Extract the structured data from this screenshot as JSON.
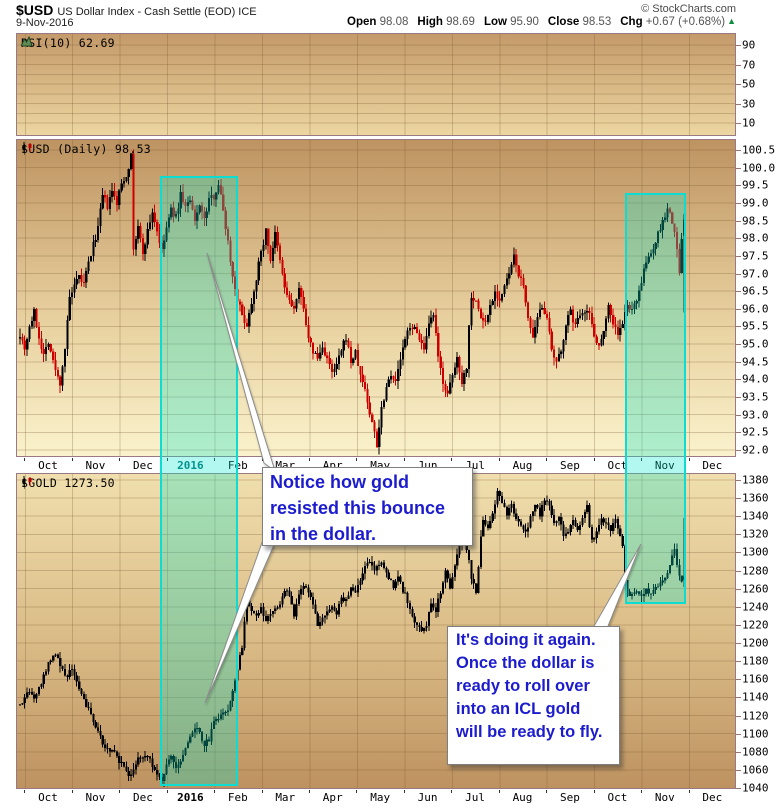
{
  "header": {
    "symbol": "$USD",
    "title": "US Dollar Index - Cash Settle (EOD) ICE",
    "copyright": "© StockCharts.com",
    "date": "9-Nov-2016",
    "ohlc": [
      {
        "label": "Open",
        "value": "98.08"
      },
      {
        "label": "High",
        "value": "98.69"
      },
      {
        "label": "Low",
        "value": "95.90"
      },
      {
        "label": "Close",
        "value": "98.53"
      },
      {
        "label": "Chg",
        "value": "+0.67 (+0.68%)"
      }
    ],
    "chg_direction": "up"
  },
  "panels": {
    "rsi": {
      "label": "RSI(10) 62.69",
      "icon": "area-chart-icon",
      "ticks": [
        90,
        70,
        50,
        30,
        10
      ]
    },
    "usd": {
      "label": "$USD (Daily) 98.53",
      "icon": "candlestick-icon",
      "ticks": [
        100.5,
        100.0,
        99.5,
        99.0,
        98.5,
        98.0,
        97.5,
        97.0,
        96.5,
        96.0,
        95.5,
        95.0,
        94.5,
        94.0,
        93.5,
        93.0,
        92.5,
        92.0
      ]
    },
    "gold": {
      "label": "$GOLD 1273.50",
      "icon": "candlestick-icon",
      "ticks": [
        1380,
        1360,
        1340,
        1320,
        1300,
        1280,
        1260,
        1240,
        1220,
        1200,
        1180,
        1160,
        1140,
        1120,
        1100,
        1080,
        1060,
        1040
      ]
    }
  },
  "month_axis_labels": [
    "Oct",
    "Nov",
    "Dec",
    "2016",
    "Feb",
    "Mar",
    "Apr",
    "May",
    "Jun",
    "Jul",
    "Aug",
    "Sep",
    "Oct",
    "Nov",
    "Dec"
  ],
  "annotations": {
    "note1": "Notice how gold resisted this bounce in the dollar.",
    "note2": "It's doing it again. Once the dollar is ready to roll over into an ICL gold will be ready to fly."
  },
  "colors": {
    "usd_up": "#000000",
    "usd_down": "#cc0000",
    "gold_candle": "#000000",
    "highlight_fill": "rgba(0,232,208,0.30)",
    "highlight_border": "#0cdcd2",
    "note_text": "#1c1cce",
    "chg_triangle_green": "#0a8f3c",
    "mid_axis_year_teal": "#007070"
  },
  "chart_data": [
    {
      "type": "candlestick",
      "name": "$USD US Dollar Index (Daily)",
      "x_range": "late Sep 2015 through 9-Nov-2016",
      "ylim": [
        92.0,
        100.5
      ],
      "y_tick_step": 0.5,
      "n_days": 282,
      "last_value": 98.53,
      "close_anchors": [
        [
          0,
          95.3
        ],
        [
          2,
          94.9
        ],
        [
          4,
          95.5
        ],
        [
          6,
          95.9
        ],
        [
          8,
          95.2
        ],
        [
          10,
          94.7
        ],
        [
          12,
          95.1
        ],
        [
          14,
          94.5
        ],
        [
          16,
          94.05
        ],
        [
          17,
          93.9
        ],
        [
          19,
          94.9
        ],
        [
          21,
          96.3
        ],
        [
          23,
          96.6
        ],
        [
          25,
          96.9
        ],
        [
          27,
          96.7
        ],
        [
          29,
          97.3
        ],
        [
          31,
          97.8
        ],
        [
          33,
          98.3
        ],
        [
          35,
          99.2
        ],
        [
          37,
          98.9
        ],
        [
          39,
          99.3
        ],
        [
          41,
          99.0
        ],
        [
          43,
          99.55
        ],
        [
          45,
          99.8
        ],
        [
          47,
          100.3
        ],
        [
          48,
          97.7
        ],
        [
          50,
          98.3
        ],
        [
          52,
          97.6
        ],
        [
          54,
          98.2
        ],
        [
          56,
          98.75
        ],
        [
          58,
          98.2
        ],
        [
          60,
          97.6
        ],
        [
          62,
          98.3
        ],
        [
          64,
          98.8
        ],
        [
          66,
          98.6
        ],
        [
          68,
          99.25
        ],
        [
          70,
          98.9
        ],
        [
          72,
          99.05
        ],
        [
          74,
          98.45
        ],
        [
          76,
          99.0
        ],
        [
          78,
          98.5
        ],
        [
          80,
          99.1
        ],
        [
          82,
          99.2
        ],
        [
          84,
          99.55
        ],
        [
          86,
          98.8
        ],
        [
          88,
          97.9
        ],
        [
          90,
          96.9
        ],
        [
          92,
          96.3
        ],
        [
          94,
          95.8
        ],
        [
          96,
          95.55
        ],
        [
          98,
          96.2
        ],
        [
          100,
          96.9
        ],
        [
          102,
          97.6
        ],
        [
          104,
          98.2
        ],
        [
          106,
          97.4
        ],
        [
          108,
          98.1
        ],
        [
          110,
          97.35
        ],
        [
          112,
          96.6
        ],
        [
          114,
          96.2
        ],
        [
          116,
          96.0
        ],
        [
          118,
          96.5
        ],
        [
          120,
          96.1
        ],
        [
          122,
          95.1
        ],
        [
          124,
          94.8
        ],
        [
          126,
          94.6
        ],
        [
          128,
          94.9
        ],
        [
          130,
          94.6
        ],
        [
          132,
          94.15
        ],
        [
          134,
          94.4
        ],
        [
          136,
          94.8
        ],
        [
          138,
          95.2
        ],
        [
          140,
          94.5
        ],
        [
          142,
          94.75
        ],
        [
          144,
          94.1
        ],
        [
          146,
          93.75
        ],
        [
          148,
          93.0
        ],
        [
          150,
          92.55
        ],
        [
          151,
          92.15
        ],
        [
          153,
          93.2
        ],
        [
          155,
          93.8
        ],
        [
          157,
          94.2
        ],
        [
          159,
          93.9
        ],
        [
          161,
          94.6
        ],
        [
          163,
          95.1
        ],
        [
          165,
          95.55
        ],
        [
          167,
          95.4
        ],
        [
          169,
          95.2
        ],
        [
          171,
          94.8
        ],
        [
          173,
          95.5
        ],
        [
          175,
          95.85
        ],
        [
          177,
          94.6
        ],
        [
          179,
          93.95
        ],
        [
          181,
          93.55
        ],
        [
          183,
          94.1
        ],
        [
          185,
          94.6
        ],
        [
          187,
          93.95
        ],
        [
          189,
          94.35
        ],
        [
          190,
          95.5
        ],
        [
          191,
          96.4
        ],
        [
          193,
          96.2
        ],
        [
          195,
          95.75
        ],
        [
          197,
          95.6
        ],
        [
          199,
          96.1
        ],
        [
          201,
          96.5
        ],
        [
          203,
          96.25
        ],
        [
          205,
          96.6
        ],
        [
          207,
          97.0
        ],
        [
          209,
          97.45
        ],
        [
          211,
          97.0
        ],
        [
          213,
          96.6
        ],
        [
          215,
          95.8
        ],
        [
          217,
          95.1
        ],
        [
          219,
          95.7
        ],
        [
          221,
          96.1
        ],
        [
          223,
          95.8
        ],
        [
          225,
          94.75
        ],
        [
          227,
          94.45
        ],
        [
          229,
          94.8
        ],
        [
          231,
          95.6
        ],
        [
          233,
          95.9
        ],
        [
          235,
          95.5
        ],
        [
          237,
          95.9
        ],
        [
          239,
          96.0
        ],
        [
          241,
          95.85
        ],
        [
          243,
          95.3
        ],
        [
          245,
          94.9
        ],
        [
          247,
          95.45
        ],
        [
          249,
          96.1
        ],
        [
          251,
          95.6
        ],
        [
          253,
          95.3
        ],
        [
          255,
          95.55
        ],
        [
          257,
          96.15
        ],
        [
          259,
          95.9
        ],
        [
          261,
          96.3
        ],
        [
          263,
          96.8
        ],
        [
          265,
          97.3
        ],
        [
          267,
          97.6
        ],
        [
          269,
          97.9
        ],
        [
          271,
          98.3
        ],
        [
          273,
          98.6
        ],
        [
          274,
          98.85
        ],
        [
          276,
          98.45
        ],
        [
          277,
          98.2
        ],
        [
          278,
          97.6
        ],
        [
          279,
          97.1
        ],
        [
          280,
          97.9
        ],
        [
          281,
          98.53
        ]
      ],
      "last_candle": {
        "open": 98.08,
        "high": 98.69,
        "low": 95.9,
        "close": 98.53
      }
    },
    {
      "type": "candlestick",
      "name": "$GOLD",
      "x_range": "late Sep 2015 through 9-Nov-2016",
      "ylim": [
        1040,
        1380
      ],
      "y_tick_step": 20,
      "n_days": 282,
      "last_value": 1273.5,
      "close_anchors": [
        [
          0,
          1132
        ],
        [
          2,
          1141
        ],
        [
          4,
          1148
        ],
        [
          6,
          1138
        ],
        [
          8,
          1152
        ],
        [
          10,
          1163
        ],
        [
          12,
          1178
        ],
        [
          14,
          1188
        ],
        [
          16,
          1182
        ],
        [
          18,
          1170
        ],
        [
          20,
          1164
        ],
        [
          22,
          1172
        ],
        [
          24,
          1155
        ],
        [
          26,
          1143
        ],
        [
          28,
          1132
        ],
        [
          30,
          1119
        ],
        [
          32,
          1108
        ],
        [
          34,
          1096
        ],
        [
          36,
          1086
        ],
        [
          38,
          1078
        ],
        [
          40,
          1083
        ],
        [
          42,
          1070
        ],
        [
          44,
          1062
        ],
        [
          46,
          1053
        ],
        [
          48,
          1061
        ],
        [
          50,
          1075
        ],
        [
          52,
          1071
        ],
        [
          54,
          1077
        ],
        [
          56,
          1066
        ],
        [
          58,
          1053
        ],
        [
          60,
          1050
        ],
        [
          62,
          1066
        ],
        [
          64,
          1077
        ],
        [
          66,
          1062
        ],
        [
          68,
          1072
        ],
        [
          70,
          1084
        ],
        [
          72,
          1096
        ],
        [
          74,
          1107
        ],
        [
          76,
          1100
        ],
        [
          78,
          1088
        ],
        [
          80,
          1094
        ],
        [
          82,
          1112
        ],
        [
          84,
          1118
        ],
        [
          86,
          1124
        ],
        [
          88,
          1128
        ],
        [
          90,
          1145
        ],
        [
          92,
          1172
        ],
        [
          94,
          1196
        ],
        [
          96,
          1246
        ],
        [
          98,
          1238
        ],
        [
          100,
          1228
        ],
        [
          102,
          1240
        ],
        [
          104,
          1222
        ],
        [
          106,
          1232
        ],
        [
          108,
          1238
        ],
        [
          110,
          1243
        ],
        [
          112,
          1260
        ],
        [
          114,
          1250
        ],
        [
          116,
          1232
        ],
        [
          118,
          1254
        ],
        [
          120,
          1266
        ],
        [
          122,
          1258
        ],
        [
          124,
          1243
        ],
        [
          126,
          1218
        ],
        [
          128,
          1226
        ],
        [
          130,
          1233
        ],
        [
          132,
          1240
        ],
        [
          134,
          1229
        ],
        [
          136,
          1252
        ],
        [
          138,
          1246
        ],
        [
          140,
          1262
        ],
        [
          142,
          1256
        ],
        [
          144,
          1271
        ],
        [
          146,
          1287
        ],
        [
          148,
          1292
        ],
        [
          150,
          1279
        ],
        [
          152,
          1289
        ],
        [
          154,
          1285
        ],
        [
          156,
          1271
        ],
        [
          158,
          1263
        ],
        [
          160,
          1272
        ],
        [
          162,
          1258
        ],
        [
          164,
          1247
        ],
        [
          166,
          1230
        ],
        [
          168,
          1219
        ],
        [
          170,
          1213
        ],
        [
          172,
          1221
        ],
        [
          174,
          1243
        ],
        [
          176,
          1237
        ],
        [
          178,
          1257
        ],
        [
          180,
          1280
        ],
        [
          182,
          1263
        ],
        [
          184,
          1285
        ],
        [
          186,
          1308
        ],
        [
          188,
          1316
        ],
        [
          190,
          1294
        ],
        [
          191,
          1272
        ],
        [
          192,
          1264
        ],
        [
          193,
          1258
        ],
        [
          194,
          1285
        ],
        [
          195,
          1316
        ],
        [
          196,
          1334
        ],
        [
          198,
          1326
        ],
        [
          200,
          1340
        ],
        [
          202,
          1366
        ],
        [
          204,
          1354
        ],
        [
          206,
          1342
        ],
        [
          208,
          1352
        ],
        [
          210,
          1337
        ],
        [
          212,
          1329
        ],
        [
          214,
          1322
        ],
        [
          216,
          1338
        ],
        [
          218,
          1351
        ],
        [
          220,
          1342
        ],
        [
          222,
          1358
        ],
        [
          224,
          1351
        ],
        [
          226,
          1332
        ],
        [
          228,
          1341
        ],
        [
          230,
          1318
        ],
        [
          232,
          1325
        ],
        [
          234,
          1336
        ],
        [
          236,
          1326
        ],
        [
          238,
          1340
        ],
        [
          240,
          1350
        ],
        [
          242,
          1312
        ],
        [
          244,
          1321
        ],
        [
          246,
          1340
        ],
        [
          248,
          1331
        ],
        [
          250,
          1326
        ],
        [
          252,
          1336
        ],
        [
          254,
          1318
        ],
        [
          255,
          1306
        ],
        [
          256,
          1268
        ],
        [
          257,
          1255
        ],
        [
          259,
          1252
        ],
        [
          261,
          1257
        ],
        [
          263,
          1252
        ],
        [
          265,
          1259
        ],
        [
          267,
          1255
        ],
        [
          269,
          1261
        ],
        [
          271,
          1266
        ],
        [
          273,
          1272
        ],
        [
          275,
          1284
        ],
        [
          276,
          1295
        ],
        [
          277,
          1305
        ],
        [
          278,
          1285
        ],
        [
          279,
          1276
        ],
        [
          280,
          1270
        ],
        [
          281,
          1273.5
        ]
      ],
      "last_candle": {
        "open": 1270,
        "high": 1338,
        "low": 1262,
        "close": 1273.5
      }
    }
  ],
  "highlights": [
    {
      "day_start": 60,
      "day_end": 93,
      "covers": "USD panel through GOLD panel bottom",
      "meaning": "dollar bounce / gold resistance zone"
    },
    {
      "day_start": 256,
      "day_end": 282,
      "covers": "USD panel through GOLD panel mid",
      "meaning": "current dollar bounce zone"
    }
  ]
}
